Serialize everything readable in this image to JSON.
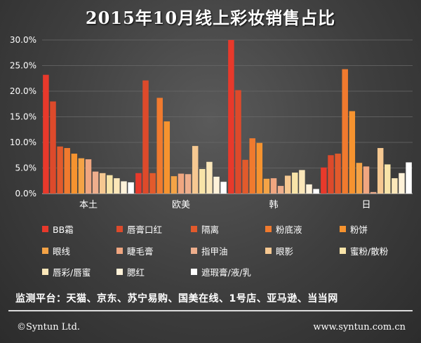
{
  "chart_data": {
    "type": "bar",
    "title": "2015年10月线上彩妆销售占比",
    "categories": [
      "本土",
      "欧美",
      "韩",
      "日"
    ],
    "ylim": [
      0,
      30
    ],
    "yticks": [
      "0.0%",
      "5.0%",
      "10.0%",
      "15.0%",
      "20.0%",
      "25.0%",
      "30.0%"
    ],
    "grid": true,
    "legend_position": "bottom",
    "series": [
      {
        "name": "BB霜",
        "color": "#e8392b",
        "values": [
          23.2,
          4.0,
          30.0,
          5.1
        ]
      },
      {
        "name": "唇膏口红",
        "color": "#dd4a2b",
        "values": [
          18.0,
          22.1,
          20.2,
          7.5
        ]
      },
      {
        "name": "隔离",
        "color": "#e25a2c",
        "values": [
          9.2,
          4.0,
          6.6,
          7.8
        ]
      },
      {
        "name": "粉底液",
        "color": "#f07a2e",
        "values": [
          8.9,
          18.7,
          10.8,
          24.3
        ]
      },
      {
        "name": "粉饼",
        "color": "#f6932f",
        "values": [
          7.8,
          14.1,
          9.9,
          16.1
        ]
      },
      {
        "name": "眼线",
        "color": "#f4a346",
        "values": [
          6.9,
          3.4,
          2.9,
          6.0
        ]
      },
      {
        "name": "睫毛膏",
        "color": "#f0a680",
        "values": [
          6.7,
          3.9,
          3.0,
          5.3
        ]
      },
      {
        "name": "指甲油",
        "color": "#eeae8c",
        "values": [
          4.3,
          3.8,
          1.5,
          0.3
        ]
      },
      {
        "name": "眼影",
        "color": "#f6c891",
        "values": [
          4.0,
          9.3,
          3.5,
          8.9
        ]
      },
      {
        "name": "蜜粉/散粉",
        "color": "#f8e4a8",
        "values": [
          3.6,
          4.8,
          4.1,
          5.7
        ]
      },
      {
        "name": "唇彩/唇蜜",
        "color": "#fbe7b9",
        "values": [
          3.0,
          6.2,
          4.6,
          3.0
        ]
      },
      {
        "name": "腮红",
        "color": "#fff2d9",
        "values": [
          2.4,
          3.3,
          1.8,
          4.0
        ]
      },
      {
        "name": "遮瑕膏/液/乳",
        "color": "#ffffff",
        "values": [
          2.2,
          2.3,
          0.9,
          6.1
        ]
      }
    ]
  },
  "platforms_text": "监测平台：天猫、京东、苏宁易购、国美在线、1号店、亚马逊、当当网",
  "footer": {
    "left": "©Syntun Ltd.",
    "right": "www.syntun.com.cn"
  }
}
